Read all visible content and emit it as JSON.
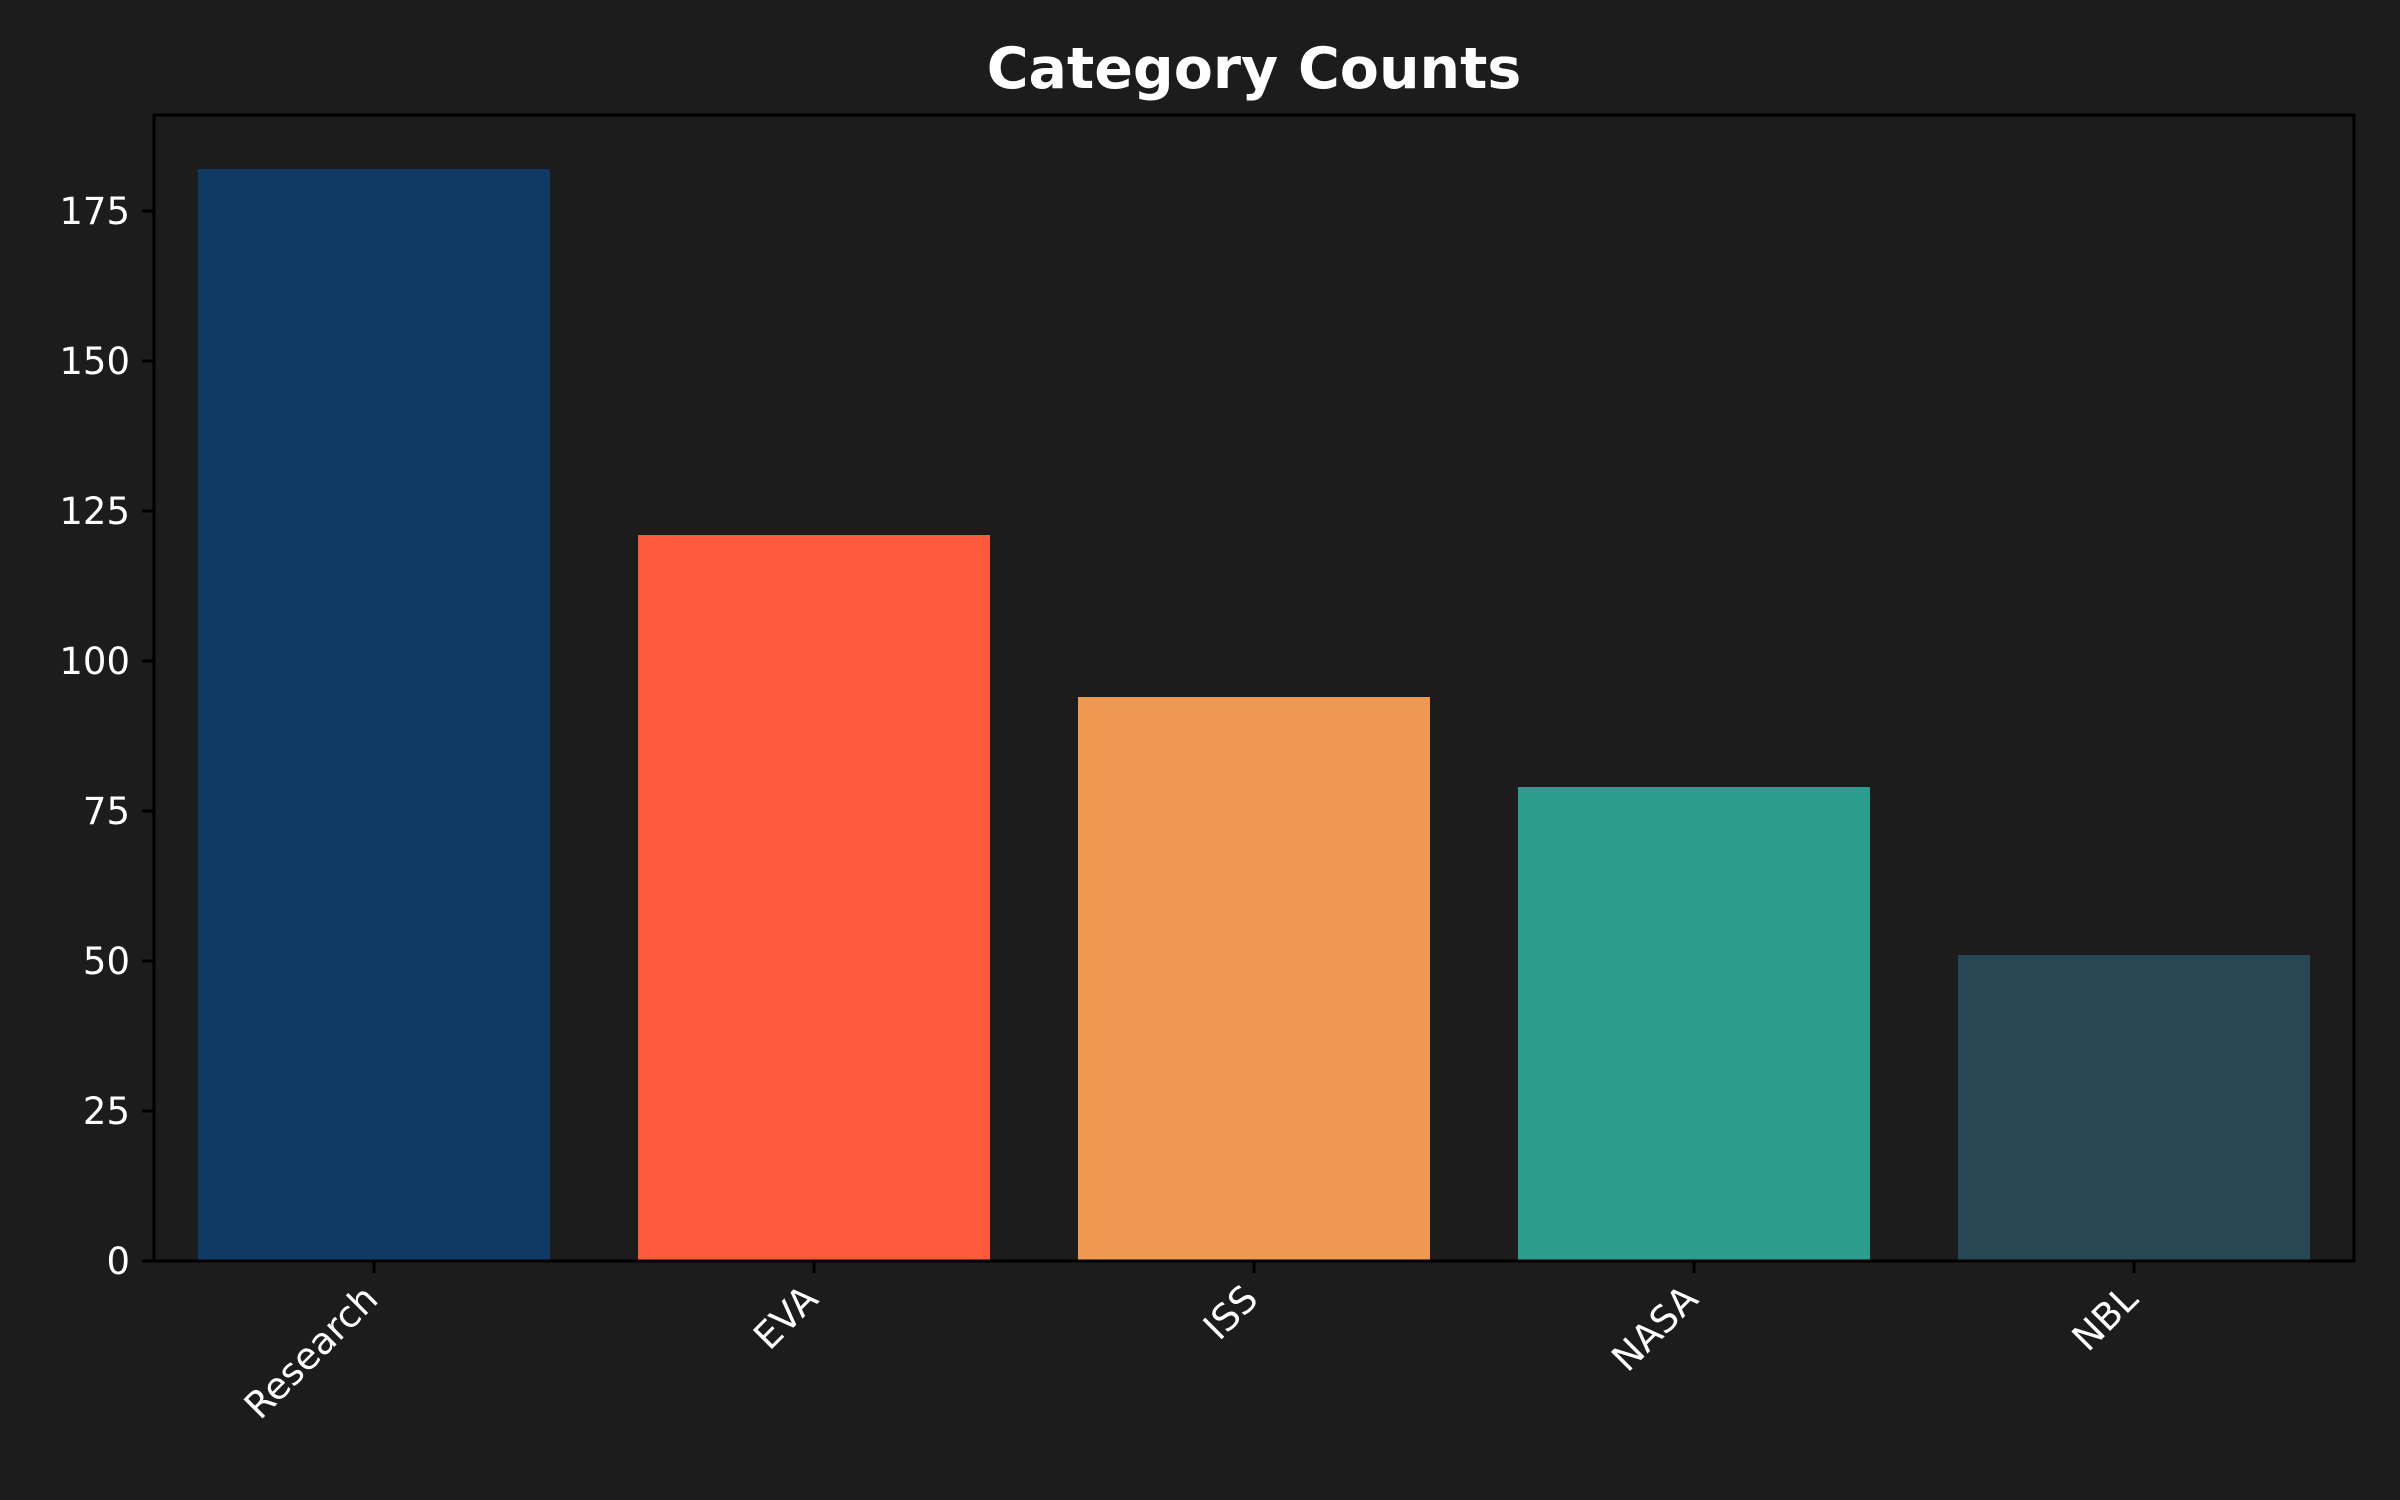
{
  "chart_data": {
    "type": "bar",
    "title": "Category Counts",
    "xlabel": "",
    "ylabel": "",
    "categories": [
      "Research",
      "EVA",
      "ISS",
      "NASA",
      "NBL"
    ],
    "values": [
      182,
      121,
      94,
      79,
      51
    ],
    "colors": [
      "#0e3a63",
      "#fc5a3b",
      "#ee994f",
      "#2b9d8f",
      "#274754"
    ],
    "ylim": [
      0,
      191
    ],
    "yticks": [
      0,
      25,
      50,
      75,
      100,
      125,
      150,
      175
    ],
    "grid": false,
    "legend": "none",
    "background": "#1c1c1c",
    "text_color": "#ffffff"
  }
}
